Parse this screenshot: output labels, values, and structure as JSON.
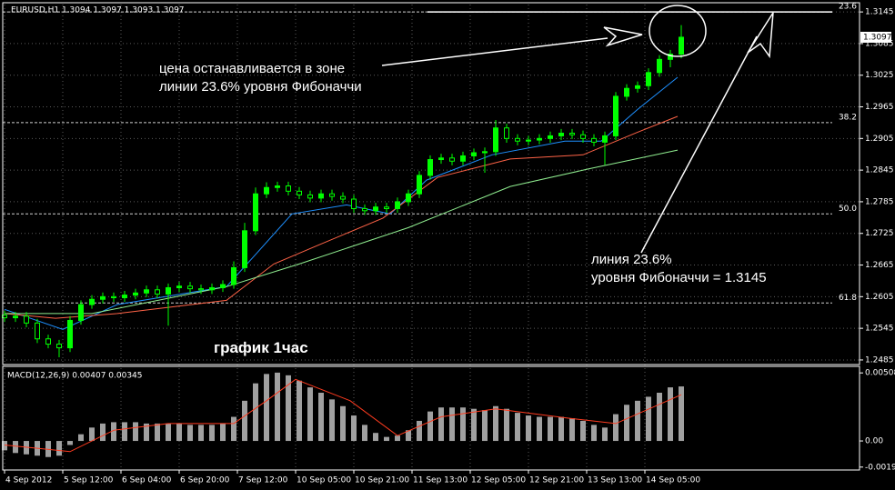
{
  "chart_data": [
    {
      "type": "candlestick",
      "title": "EURUSD,H1  1.3094 1.3097 1.3093 1.3097",
      "color": "#00ff00",
      "x": [
        0,
        3,
        6,
        9,
        12,
        15,
        18,
        21,
        24,
        27,
        30,
        33,
        36,
        39,
        42,
        45,
        48,
        51,
        54,
        57,
        60,
        63,
        66,
        69,
        72,
        75,
        78,
        81,
        84,
        87,
        90,
        93,
        96,
        99,
        102,
        105,
        108,
        111,
        114,
        117,
        120,
        123,
        126,
        129,
        132,
        135,
        138,
        141,
        144,
        147,
        150,
        153,
        156,
        159,
        162,
        165,
        168,
        171,
        174,
        177,
        180,
        183,
        186
      ],
      "open": [
        1.257,
        1.2565,
        1.2568,
        1.2555,
        1.2525,
        1.2515,
        1.2508,
        1.256,
        1.259,
        1.26,
        1.2605,
        1.2603,
        1.2608,
        1.2612,
        1.2618,
        1.261,
        1.2622,
        1.2625,
        1.262,
        1.2618,
        1.2622,
        1.2628,
        1.266,
        1.273,
        1.28,
        1.2812,
        1.2815,
        1.2805,
        1.2798,
        1.2792,
        1.28,
        1.2795,
        1.279,
        1.2772,
        1.2768,
        1.2775,
        1.2772,
        1.2785,
        1.28,
        1.2835,
        1.2865,
        1.2868,
        1.2862,
        1.2872,
        1.2878,
        1.288,
        1.2925,
        1.2905,
        1.29,
        1.2902,
        1.2905,
        1.291,
        1.2915,
        1.2912,
        1.2905,
        1.2898,
        1.291,
        1.2985,
        1.3,
        1.3005,
        1.303,
        1.3055,
        1.3065
      ],
      "high": [
        1.2578,
        1.2576,
        1.2576,
        1.2563,
        1.2533,
        1.2523,
        1.2568,
        1.2598,
        1.2608,
        1.2613,
        1.2613,
        1.2616,
        1.262,
        1.2626,
        1.2626,
        1.263,
        1.2633,
        1.2633,
        1.2628,
        1.263,
        1.2636,
        1.2672,
        1.2745,
        1.2812,
        1.2822,
        1.2823,
        1.2823,
        1.2813,
        1.2806,
        1.2808,
        1.2808,
        1.2803,
        1.2798,
        1.278,
        1.2783,
        1.2783,
        1.2793,
        1.2808,
        1.2843,
        1.2873,
        1.2876,
        1.2876,
        1.288,
        1.2886,
        1.2888,
        1.294,
        1.2933,
        1.2913,
        1.291,
        1.2913,
        1.2918,
        1.2923,
        1.2923,
        1.292,
        1.2913,
        1.2918,
        1.2993,
        1.3008,
        1.3013,
        1.3038,
        1.3063,
        1.3073,
        1.312
      ],
      "low": [
        1.2557,
        1.2557,
        1.2547,
        1.2517,
        1.2507,
        1.249,
        1.25,
        1.2552,
        1.2582,
        1.2592,
        1.2595,
        1.2595,
        1.26,
        1.2604,
        1.2602,
        1.255,
        1.2614,
        1.2612,
        1.261,
        1.261,
        1.2614,
        1.262,
        1.2652,
        1.2722,
        1.2792,
        1.2804,
        1.2797,
        1.279,
        1.2784,
        1.2784,
        1.2787,
        1.2782,
        1.2764,
        1.276,
        1.276,
        1.2764,
        1.2764,
        1.2777,
        1.2792,
        1.2827,
        1.2857,
        1.2854,
        1.2854,
        1.2864,
        1.284,
        1.2872,
        1.2897,
        1.2892,
        1.2892,
        1.2894,
        1.2897,
        1.2902,
        1.2904,
        1.2897,
        1.289,
        1.2855,
        1.2902,
        1.2977,
        1.2992,
        1.2997,
        1.3022,
        1.304,
        1.3057
      ],
      "close": [
        1.2565,
        1.2568,
        1.2555,
        1.2525,
        1.2515,
        1.2508,
        1.256,
        1.259,
        1.26,
        1.2605,
        1.2603,
        1.2608,
        1.2612,
        1.2618,
        1.261,
        1.2622,
        1.2625,
        1.262,
        1.2618,
        1.2622,
        1.2628,
        1.266,
        1.273,
        1.28,
        1.2812,
        1.2815,
        1.2805,
        1.2798,
        1.2792,
        1.28,
        1.2795,
        1.279,
        1.2772,
        1.2768,
        1.2775,
        1.2772,
        1.2785,
        1.28,
        1.2835,
        1.2865,
        1.2868,
        1.2862,
        1.2872,
        1.2878,
        1.288,
        1.2925,
        1.2905,
        1.29,
        1.2902,
        1.2905,
        1.291,
        1.2915,
        1.2912,
        1.2905,
        1.2898,
        1.291,
        1.2985,
        1.3,
        1.3005,
        1.303,
        1.3055,
        1.3065,
        1.3097
      ],
      "xlim": [
        0,
        235
      ],
      "xticks": [
        {
          "value": 0,
          "label": "4 Sep 2012"
        },
        {
          "value": 16,
          "label": "5 Sep 12:00"
        },
        {
          "value": 32,
          "label": "6 Sep 04:00"
        },
        {
          "value": 48,
          "label": "6 Sep 20:00"
        },
        {
          "value": 64,
          "label": "7 Sep 12:00"
        },
        {
          "value": 80,
          "label": "10 Sep 05:00"
        },
        {
          "value": 96,
          "label": "10 Sep 21:00"
        },
        {
          "value": 112,
          "label": "11 Sep 13:00"
        },
        {
          "value": 128,
          "label": "12 Sep 05:00"
        },
        {
          "value": 144,
          "label": "12 Sep 21:00"
        },
        {
          "value": 160,
          "label": "13 Sep 13:00"
        },
        {
          "value": 176,
          "label": "14 Sep 05:00"
        }
      ],
      "ylim": [
        1.2478,
        1.3159
      ],
      "yticks": [
        1.3145,
        1.3085,
        1.3025,
        1.2965,
        1.2905,
        1.2845,
        1.2785,
        1.2725,
        1.2665,
        1.2605,
        1.2545,
        1.2485
      ],
      "grid": true,
      "current_price": 1.3097,
      "moving_averages": [
        {
          "color": "#1e90ff",
          "x": [
            0,
            16,
            31,
            61,
            69,
            79,
            94,
            106,
            116,
            134,
            154,
            164,
            174,
            185
          ],
          "values": [
            1.2581,
            1.2543,
            1.259,
            1.2624,
            1.2685,
            1.2762,
            1.2779,
            1.2762,
            1.2826,
            1.2874,
            1.29,
            1.29,
            1.296,
            1.3021
          ]
        },
        {
          "color": "#ff6347",
          "x": [
            0,
            14,
            31,
            61,
            74,
            86,
            104,
            119,
            139,
            159,
            174,
            185
          ],
          "values": [
            1.2573,
            1.2564,
            1.2573,
            1.2598,
            1.2667,
            1.2702,
            1.2754,
            1.2831,
            1.2866,
            1.2874,
            1.2917,
            1.2947
          ]
        },
        {
          "color": "#90ee90",
          "x": [
            0,
            24,
            61,
            81,
            111,
            139,
            161,
            185
          ],
          "values": [
            1.2573,
            1.2573,
            1.2624,
            1.2667,
            1.2736,
            1.2814,
            1.2848,
            1.2883
          ]
        }
      ],
      "fib_levels": [
        {
          "label": "23.6",
          "value": 1.3145
        },
        {
          "label": "38.2",
          "value": 1.2935
        },
        {
          "label": "50.0",
          "value": 1.2762
        },
        {
          "label": "61.8",
          "value": 1.2593
        }
      ],
      "annotations": [
        "цена останавливается в зоне",
        "линии 23.6% уровня Фибоначчи",
        "линия 23.6%",
        "уровня Фибоначчи = 1.3145",
        "график 1час"
      ]
    },
    {
      "type": "bar",
      "title": "MACD(12,26,9) 0.00407 0.00345",
      "color": "#a0a0a0",
      "x": [
        0,
        3,
        6,
        9,
        12,
        15,
        18,
        21,
        24,
        27,
        30,
        33,
        36,
        39,
        42,
        45,
        48,
        51,
        54,
        57,
        60,
        63,
        66,
        69,
        72,
        75,
        78,
        81,
        84,
        87,
        90,
        93,
        96,
        99,
        102,
        105,
        108,
        111,
        114,
        117,
        120,
        123,
        126,
        129,
        132,
        135,
        138,
        141,
        144,
        147,
        150,
        153,
        156,
        159,
        162,
        165,
        168,
        171,
        174,
        177,
        180,
        183,
        186
      ],
      "values": [
        -0.0007,
        -0.0009,
        -0.001,
        -0.0011,
        -0.0012,
        -0.0011,
        -0.0003,
        0.0005,
        0.001,
        0.0013,
        0.0014,
        0.0014,
        0.0014,
        0.0013,
        0.0013,
        0.0013,
        0.0013,
        0.0012,
        0.0012,
        0.0012,
        0.0013,
        0.0018,
        0.003,
        0.0043,
        0.005,
        0.0051,
        0.0049,
        0.0045,
        0.004,
        0.0036,
        0.0031,
        0.0026,
        0.0019,
        0.0012,
        0.0006,
        0.0003,
        0.0004,
        0.0008,
        0.0015,
        0.0022,
        0.0025,
        0.0025,
        0.0025,
        0.0024,
        0.0023,
        0.0026,
        0.0024,
        0.0021,
        0.0019,
        0.0018,
        0.0018,
        0.0018,
        0.0017,
        0.0015,
        0.0012,
        0.001,
        0.002,
        0.0027,
        0.003,
        0.0033,
        0.0036,
        0.004,
        0.00407
      ],
      "signal": {
        "color": "#ff3b1f",
        "x": [
          0,
          18,
          30,
          45,
          63,
          72,
          80,
          95,
          108,
          120,
          135,
          155,
          168,
          186
        ],
        "values": [
          -0.0003,
          -0.0008,
          0.0008,
          0.0013,
          0.0013,
          0.003,
          0.0046,
          0.003,
          0.0004,
          0.0018,
          0.0024,
          0.0017,
          0.0013,
          0.00345
        ]
      },
      "xlim": [
        0,
        235
      ],
      "ylim": [
        -0.0021,
        0.0055
      ],
      "yticks": [
        0.00508,
        {
          "value": 0,
          "label": "0.00"
        },
        -0.00195
      ]
    }
  ]
}
